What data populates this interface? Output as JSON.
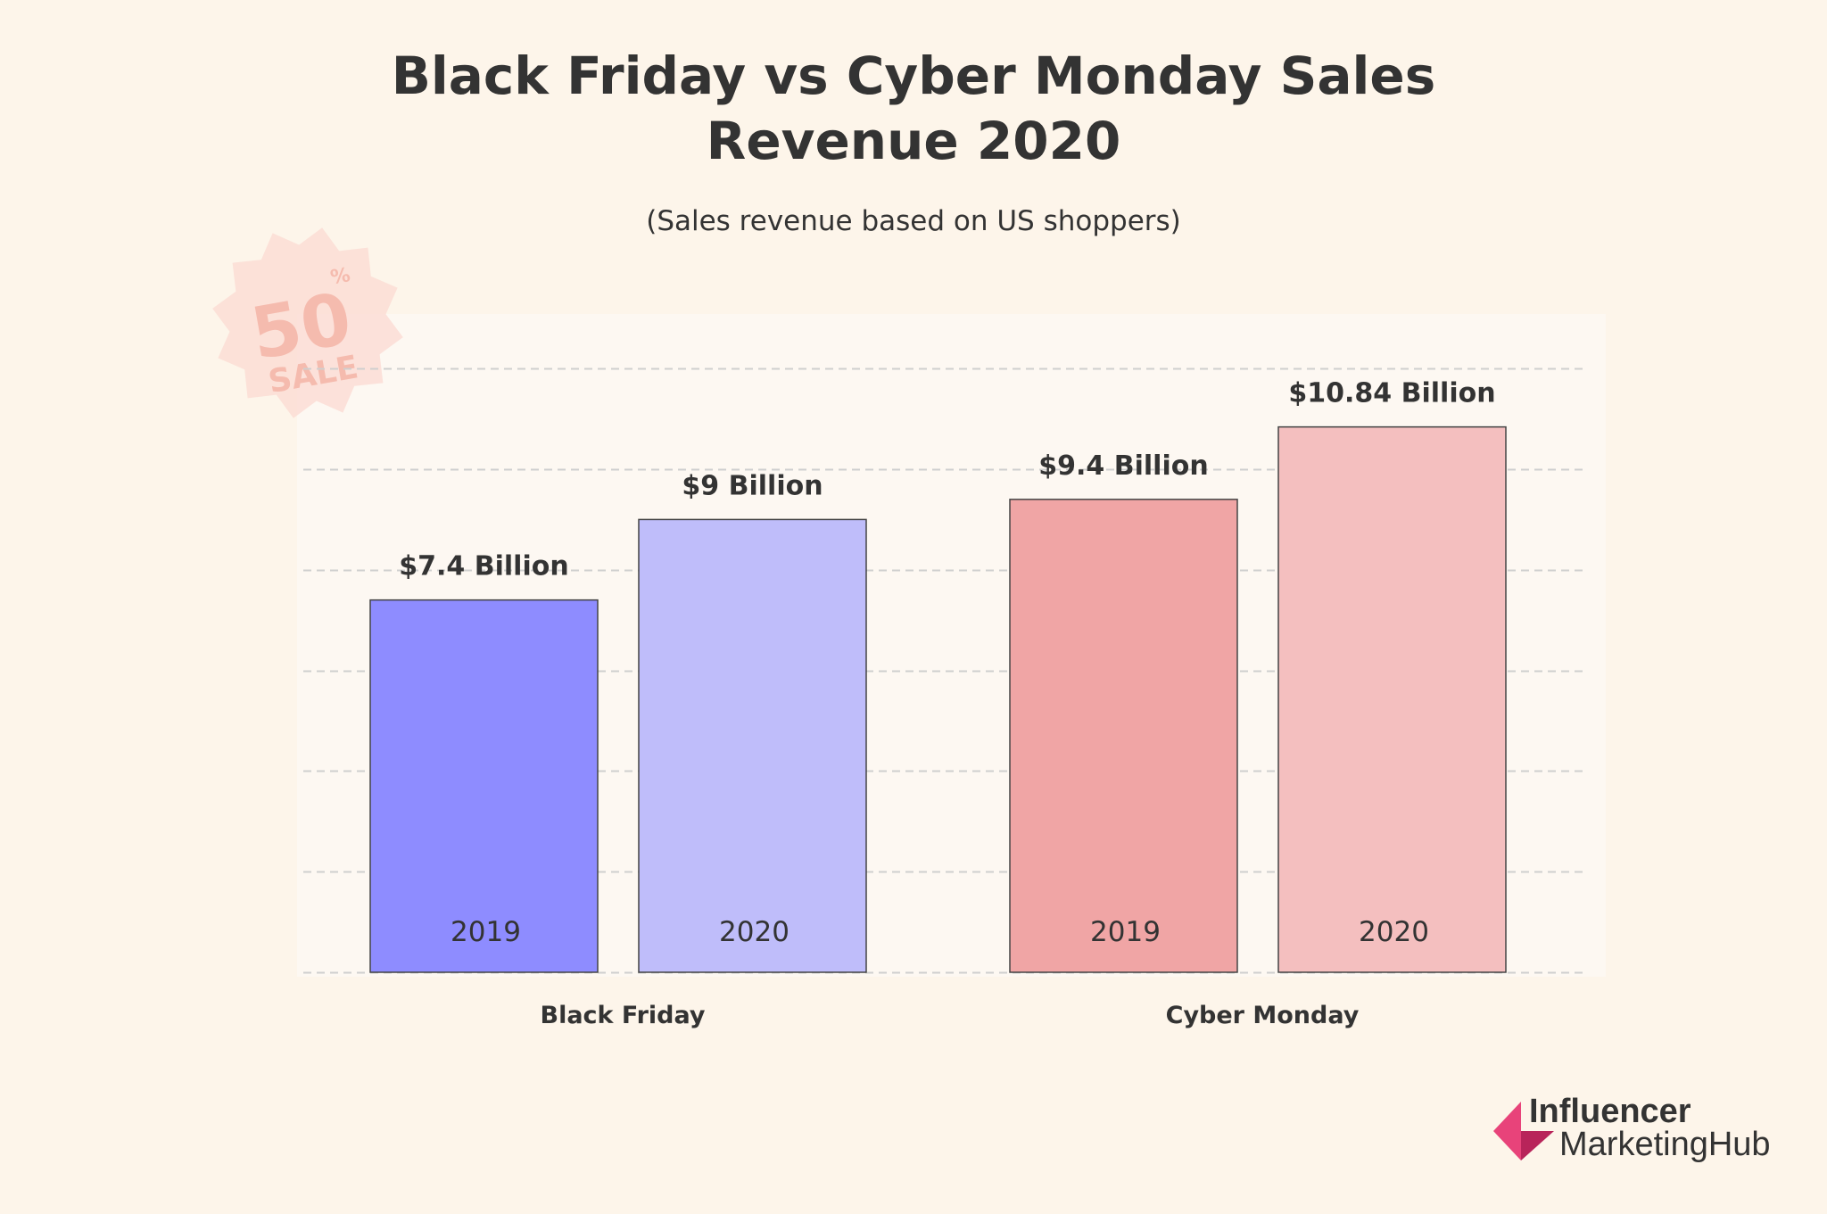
{
  "chart_data": {
    "type": "bar",
    "title_line1": "Black Friday vs Cyber Monday Sales",
    "title_line2": "Revenue 2020",
    "subtitle": "(Sales revenue based on US shoppers)",
    "xlabel": "",
    "ylabel": "",
    "ylim": [
      0,
      12
    ],
    "grid": true,
    "legend": "none",
    "categories": [
      "Black Friday",
      "Cyber Monday"
    ],
    "bars": [
      {
        "category": "Black Friday",
        "year": "2019",
        "value": 7.4,
        "label": "$7.4 Billion",
        "color": "#8e8cff"
      },
      {
        "category": "Black Friday",
        "year": "2020",
        "value": 9,
        "label": "$9 Billion",
        "color": "#bfbdfa"
      },
      {
        "category": "Cyber Monday",
        "year": "2019",
        "value": 9.4,
        "label": "$9.4 Billion",
        "color": "#f0a5a5"
      },
      {
        "category": "Cyber Monday",
        "year": "2020",
        "value": 10.84,
        "label": "$10.84 Billion",
        "color": "#f4bfbf"
      }
    ]
  },
  "stamp": {
    "percent": "50",
    "percent_sign": "%",
    "word": "SALE"
  },
  "logo": {
    "line1": "Influencer",
    "line2_bold": "Marketing",
    "line2_rest": "Hub",
    "color": "#e8437a"
  },
  "colors": {
    "background": "#fdf5ea",
    "plot_background": "#fdf8f2",
    "grid": "#cfcfcf",
    "text": "#333333"
  }
}
